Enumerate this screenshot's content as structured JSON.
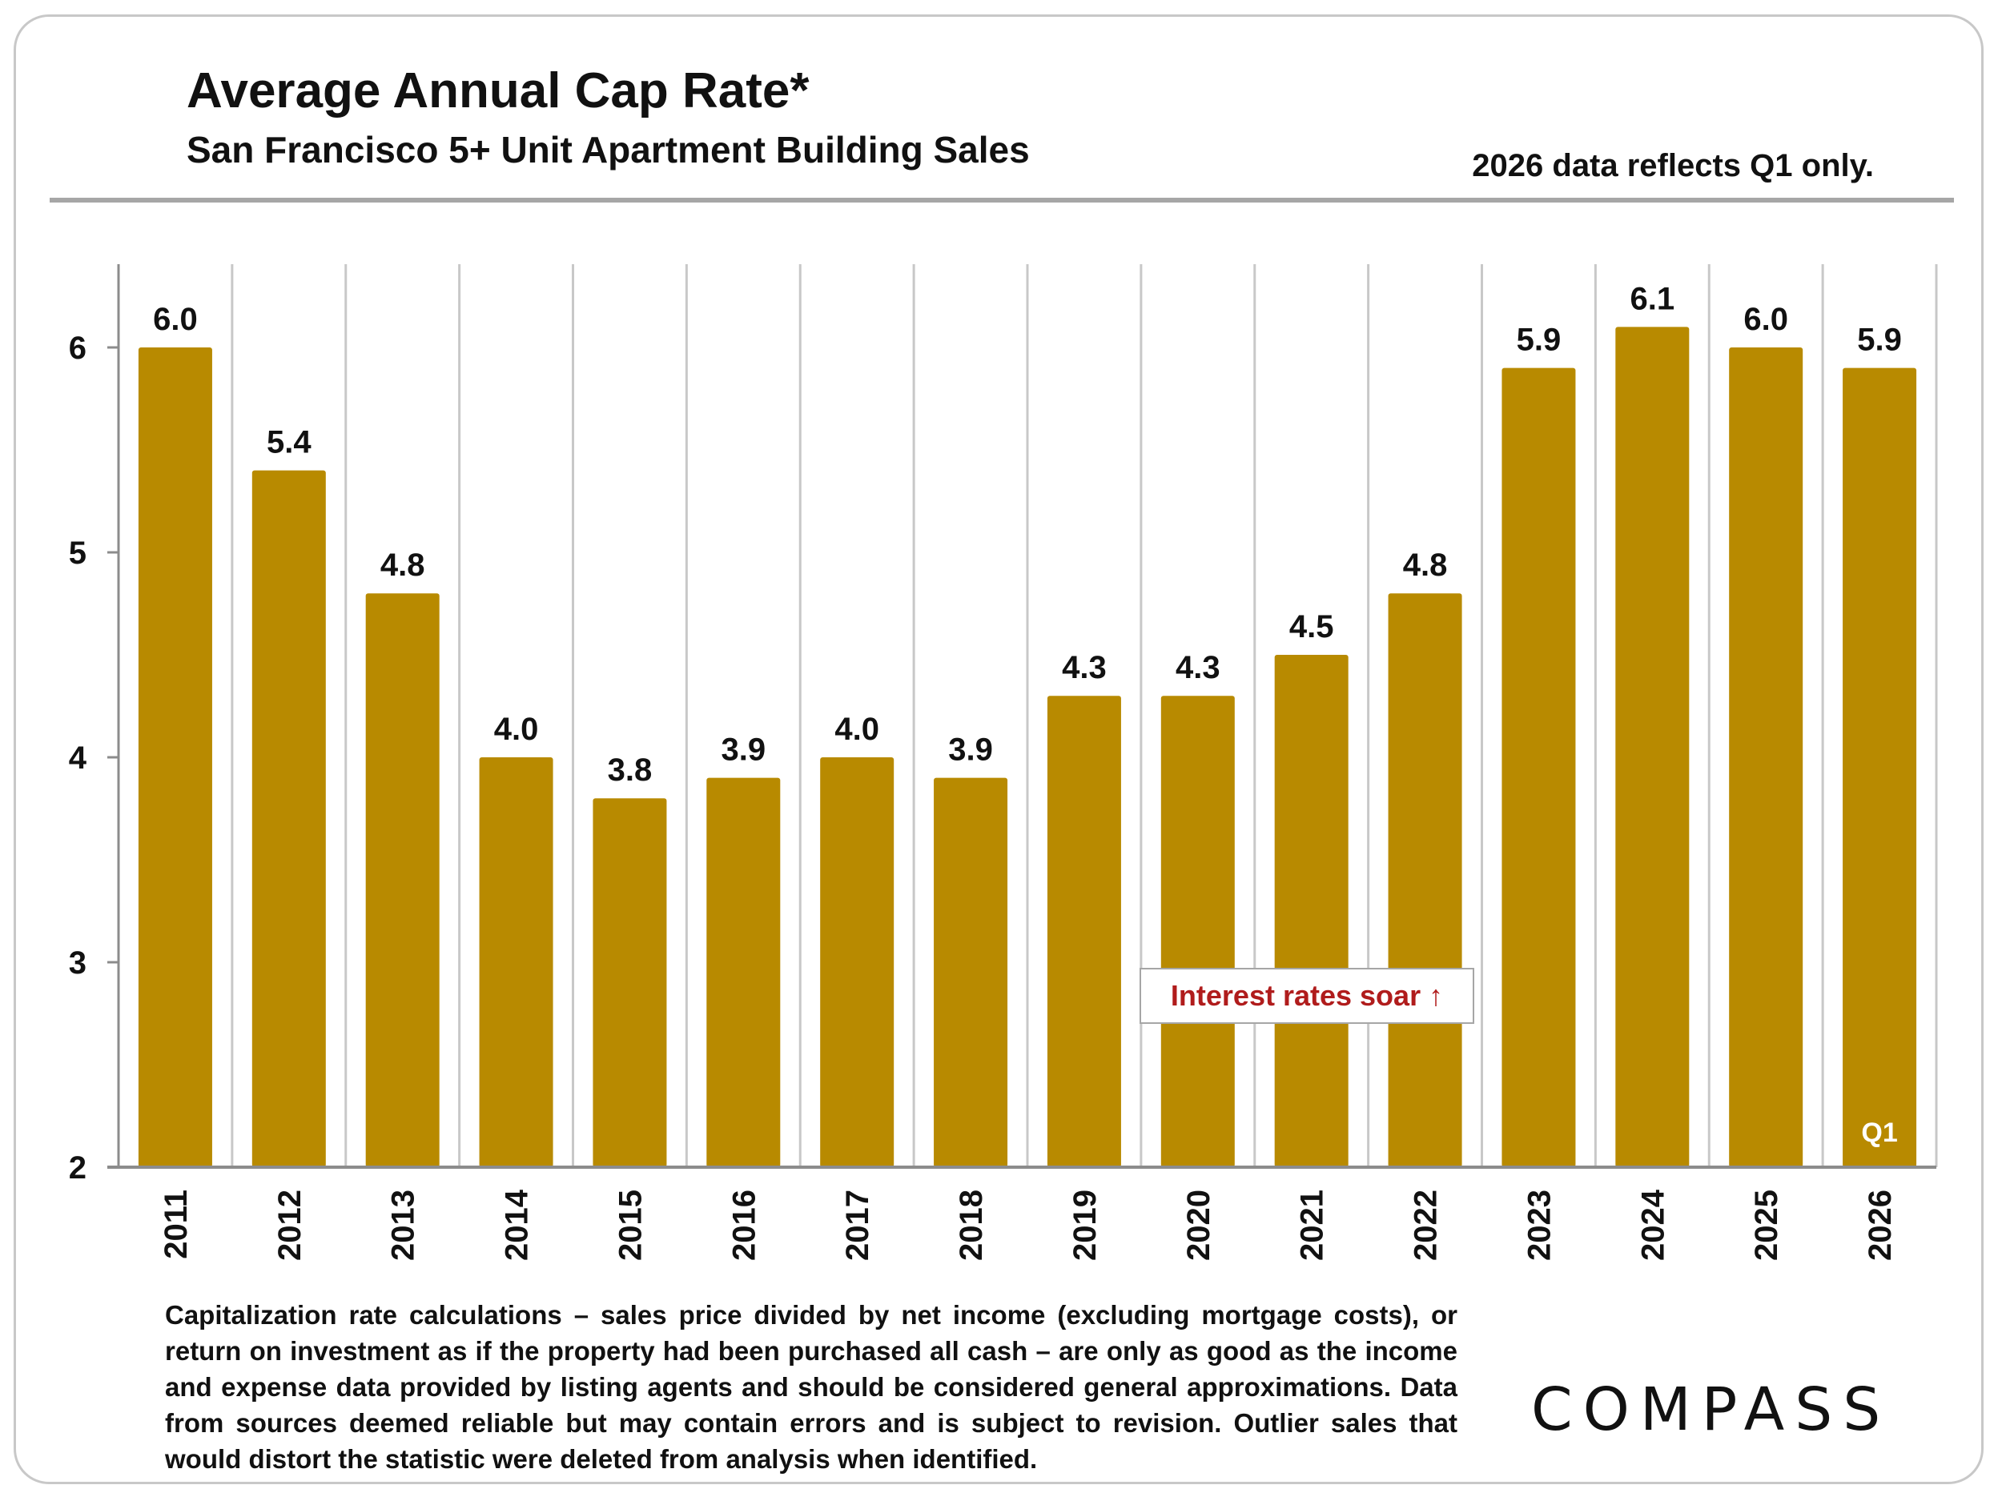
{
  "header": {
    "title": "Average Annual Cap Rate*",
    "subtitle": "San Francisco 5+ Unit Apartment Building Sales",
    "note": "2026 data reflects Q1 only."
  },
  "annotation": {
    "text": "Interest rates soar",
    "arrow": "↑"
  },
  "footnote": "Capitalization rate calculations – sales price divided by net income (excluding mortgage costs), or return on investment as if the property had been purchased all cash – are only as good as the income and expense data provided by listing agents and should be considered general approximations. Data from sources deemed reliable but may contain errors and is subject to revision. Outlier sales that would distort the statistic were deleted from analysis when identified.",
  "logo": "COMPASS",
  "colors": {
    "bar": "#b88a00",
    "annotation_text": "#b01c1c",
    "gridline": "#c8c8c8",
    "axis": "#8c8c8c"
  },
  "chart_data": {
    "type": "bar",
    "title": "Average Annual Cap Rate*",
    "subtitle": "San Francisco 5+ Unit Apartment Building Sales",
    "xlabel": "",
    "ylabel": "",
    "categories": [
      "2011",
      "2012",
      "2013",
      "2014",
      "2015",
      "2016",
      "2017",
      "2018",
      "2019",
      "2020",
      "2021",
      "2022",
      "2023",
      "2024",
      "2025",
      "2026"
    ],
    "values": [
      6.0,
      5.4,
      4.8,
      4.0,
      3.8,
      3.9,
      4.0,
      3.9,
      4.3,
      4.3,
      4.5,
      4.8,
      5.9,
      6.1,
      6.0,
      5.9
    ],
    "data_labels": [
      "6.0",
      "5.4",
      "4.8",
      "4.0",
      "3.8",
      "3.9",
      "4.0",
      "3.9",
      "4.3",
      "4.3",
      "4.5",
      "4.8",
      "5.9",
      "6.1",
      "6.0",
      "5.9"
    ],
    "ylim": [
      2,
      6.4
    ],
    "yticks": [
      2,
      3,
      4,
      5,
      6
    ],
    "grid": "vertical",
    "bar_annotations": [
      {
        "category": "2026",
        "text": "Q1"
      }
    ]
  }
}
